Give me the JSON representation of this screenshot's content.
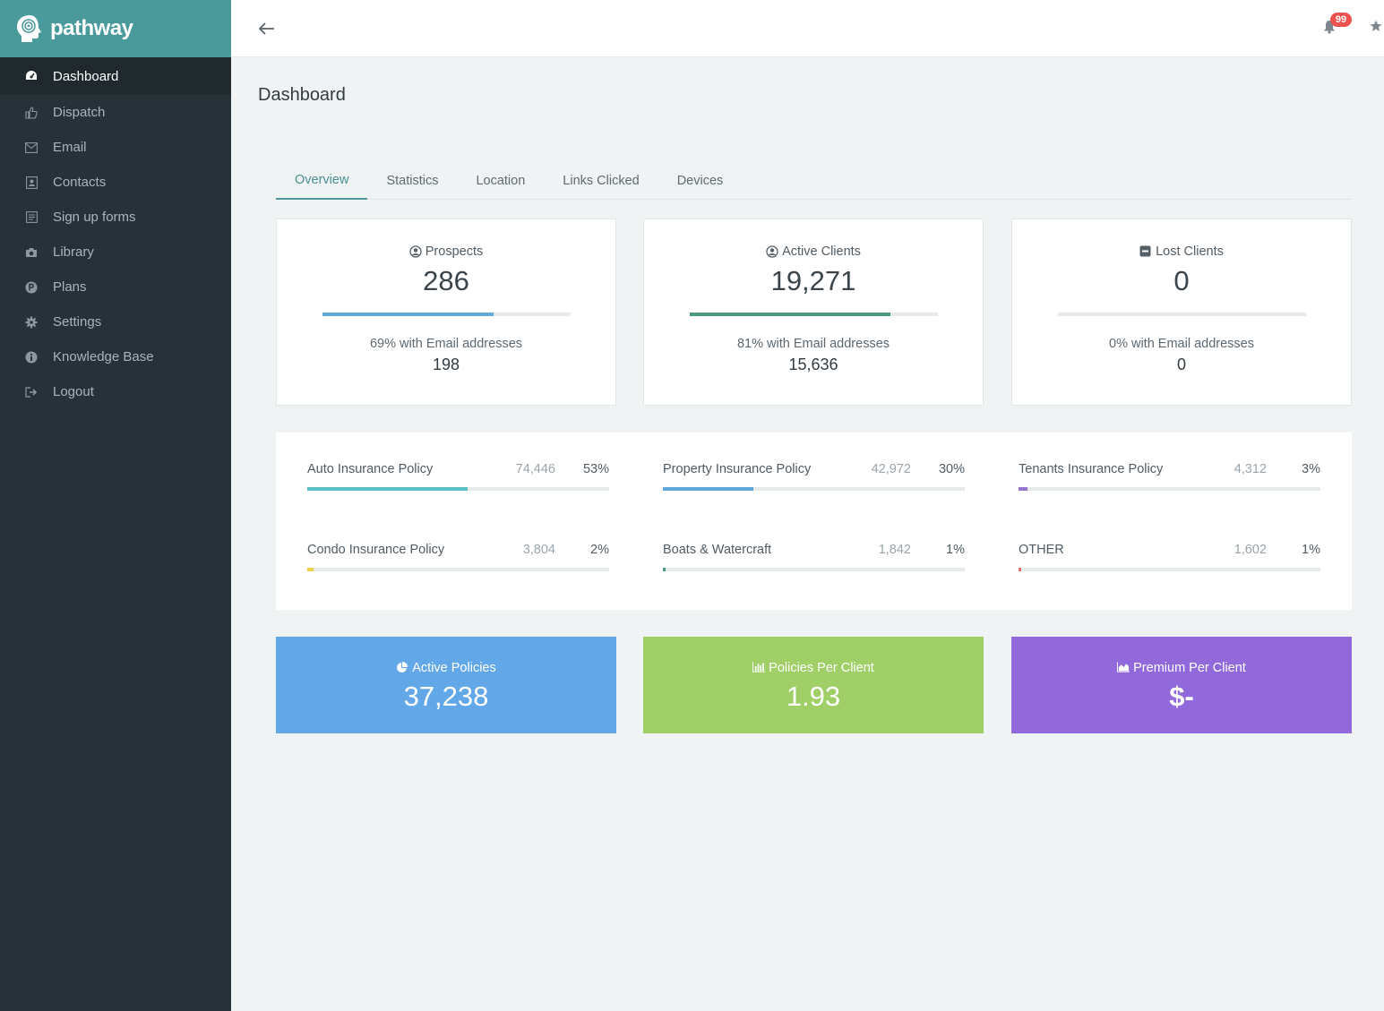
{
  "brand": {
    "name": "pathway"
  },
  "sidebar": {
    "items": [
      {
        "label": "Dashboard",
        "icon": "dashboard-icon",
        "active": true
      },
      {
        "label": "Dispatch",
        "icon": "thumbs-up-icon"
      },
      {
        "label": "Email",
        "icon": "envelope-icon"
      },
      {
        "label": "Contacts",
        "icon": "contacts-icon"
      },
      {
        "label": "Sign up forms",
        "icon": "form-icon"
      },
      {
        "label": "Library",
        "icon": "camera-icon"
      },
      {
        "label": "Plans",
        "icon": "plans-p-icon"
      },
      {
        "label": "Settings",
        "icon": "gear-icon"
      },
      {
        "label": "Knowledge Base",
        "icon": "info-icon"
      },
      {
        "label": "Logout",
        "icon": "logout-icon"
      }
    ]
  },
  "topbar": {
    "notification_count": "99"
  },
  "page": {
    "title": "Dashboard"
  },
  "tabs": [
    "Overview",
    "Statistics",
    "Location",
    "Links Clicked",
    "Devices"
  ],
  "stats": [
    {
      "label": "Prospects",
      "value": "286",
      "progress": 0.69,
      "color": "#5fa8dc",
      "sub": "69% with Email addresses",
      "sub_value": "198",
      "icon": "user-circle-icon"
    },
    {
      "label": "Active Clients",
      "value": "19,271",
      "progress": 0.81,
      "color": "#4a9a82",
      "sub": "81% with Email addresses",
      "sub_value": "15,636",
      "icon": "user-circle-icon"
    },
    {
      "label": "Lost Clients",
      "value": "0",
      "progress": 0,
      "color": "#4a9a82",
      "sub": "0% with Email addresses",
      "sub_value": "0",
      "icon": "minus-square-icon"
    }
  ],
  "policies": [
    {
      "name": "Auto Insurance Policy",
      "count": "74,446",
      "pct": "53%",
      "progress": 0.53,
      "color": "#5bc0c4"
    },
    {
      "name": "Property Insurance Policy",
      "count": "42,972",
      "pct": "30%",
      "progress": 0.3,
      "color": "#5fa8dc"
    },
    {
      "name": "Tenants Insurance Policy",
      "count": "4,312",
      "pct": "3%",
      "progress": 0.03,
      "color": "#9575cd"
    },
    {
      "name": "Condo Insurance Policy",
      "count": "3,804",
      "pct": "2%",
      "progress": 0.02,
      "color": "#f2d04a"
    },
    {
      "name": "Boats & Watercraft",
      "count": "1,842",
      "pct": "1%",
      "progress": 0.01,
      "color": "#4a9a82"
    },
    {
      "name": "OTHER",
      "count": "1,602",
      "pct": "1%",
      "progress": 0.01,
      "color": "#e57373"
    }
  ],
  "kpis": [
    {
      "label": "Active Policies",
      "value": "37,238",
      "color": "#62a8e8",
      "icon": "pie-chart-icon"
    },
    {
      "label": "Policies Per Client",
      "value": "1.93",
      "color": "#a0cf67",
      "icon": "bar-chart-icon"
    },
    {
      "label": "Premium Per Client",
      "value": "$-",
      "color": "#9169db",
      "icon": "area-chart-icon"
    }
  ]
}
